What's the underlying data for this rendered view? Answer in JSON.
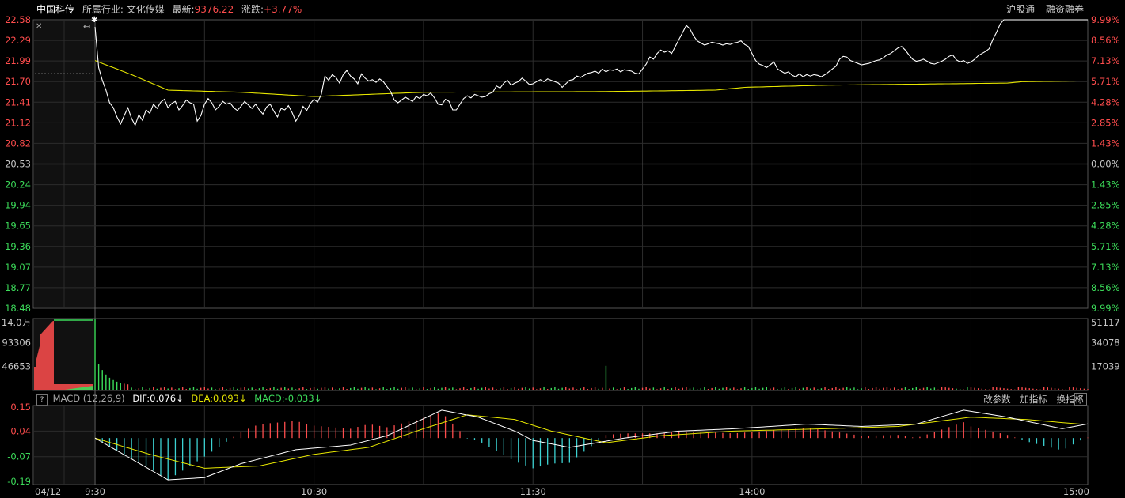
{
  "header": {
    "stock_name": "中国科传",
    "industry": "所属行业: 文化传媒",
    "latest_label": "最新:",
    "latest_value": "9376.22",
    "change_label": "涨跌:",
    "change_value": "+3.77%",
    "btn_hk": "沪股通",
    "btn_margin": "融资融券"
  },
  "macd_bar": {
    "help": "?",
    "name": "MACD (12,26,9)",
    "dif": "DIF:0.076↓",
    "dea": "DEA:0.093↓",
    "macd": "MACD:-0.033↓",
    "btn_params": "改参数",
    "btn_add": "加指标",
    "btn_switch": "换指标",
    "btn_close": "✕"
  },
  "colors": {
    "up": "#ff4d4d",
    "down": "#3cdc5a",
    "price": "#ffffff",
    "avg": "#e6e600",
    "cyan": "#3cd2d2",
    "grid": "#2c2c2c",
    "border": "#555555"
  },
  "chart_data": [
    {
      "type": "line",
      "name": "price",
      "x_ticks": [
        "04/12",
        "9:30",
        "10:30",
        "11:30",
        "14:00",
        "15:00"
      ],
      "y_left_ticks": [
        "22.58",
        "22.29",
        "21.99",
        "21.70",
        "21.41",
        "21.12",
        "20.82",
        "20.53",
        "20.24",
        "19.94",
        "19.65",
        "19.36",
        "19.07",
        "18.77",
        "18.48"
      ],
      "y_right_ticks": [
        "9.99%",
        "8.56%",
        "7.13%",
        "5.71%",
        "4.28%",
        "2.85%",
        "1.43%",
        "0.00%",
        "1.43%",
        "2.85%",
        "4.28%",
        "5.71%",
        "7.13%",
        "8.56%",
        "9.99%"
      ],
      "ylim": [
        18.48,
        22.58
      ],
      "prev_minutes": 10,
      "prev_close_line": 21.82,
      "price": [
        22.48,
        21.9,
        21.72,
        21.58,
        21.4,
        21.33,
        21.2,
        21.1,
        21.22,
        21.33,
        21.18,
        21.08,
        21.23,
        21.15,
        21.3,
        21.25,
        21.38,
        21.32,
        21.41,
        21.45,
        21.33,
        21.39,
        21.42,
        21.3,
        21.36,
        21.44,
        21.4,
        21.38,
        21.14,
        21.22,
        21.38,
        21.46,
        21.4,
        21.3,
        21.35,
        21.42,
        21.38,
        21.4,
        21.33,
        21.29,
        21.35,
        21.42,
        21.37,
        21.32,
        21.38,
        21.3,
        21.24,
        21.34,
        21.38,
        21.28,
        21.2,
        21.32,
        21.3,
        21.36,
        21.26,
        21.14,
        21.22,
        21.35,
        21.29,
        21.39,
        21.45,
        21.41,
        21.52,
        21.78,
        21.72,
        21.8,
        21.76,
        21.68,
        21.8,
        21.86,
        21.78,
        21.74,
        21.67,
        21.81,
        21.75,
        21.71,
        21.73,
        21.69,
        21.74,
        21.7,
        21.63,
        21.56,
        21.44,
        21.4,
        21.44,
        21.48,
        21.45,
        21.42,
        21.49,
        21.46,
        21.52,
        21.5,
        21.54,
        21.47,
        21.38,
        21.37,
        21.45,
        21.42,
        21.3,
        21.3,
        21.38,
        21.46,
        21.5,
        21.47,
        21.52,
        21.5,
        21.48,
        21.49,
        21.53,
        21.55,
        21.64,
        21.61,
        21.68,
        21.72,
        21.65,
        21.68,
        21.7,
        21.75,
        21.71,
        21.66,
        21.67,
        21.7,
        21.73,
        21.7,
        21.74,
        21.72,
        21.7,
        21.68,
        21.62,
        21.67,
        21.72,
        21.73,
        21.78,
        21.76,
        21.79,
        21.82,
        21.83,
        21.85,
        21.82,
        21.88,
        21.84,
        21.87,
        21.86,
        21.88,
        21.84,
        21.87,
        21.86,
        21.85,
        21.82,
        21.81,
        21.88,
        21.95,
        22.05,
        22.02,
        22.1,
        22.15,
        22.12,
        22.14,
        22.1,
        22.2,
        22.3,
        22.4,
        22.5,
        22.45,
        22.35,
        22.28,
        22.25,
        22.22,
        22.24,
        22.26,
        22.25,
        22.24,
        22.22,
        22.24,
        22.23,
        22.25,
        22.26,
        22.28,
        22.23,
        22.2,
        22.1,
        22.0,
        21.95,
        21.93,
        21.9,
        21.94,
        21.98,
        21.88,
        21.85,
        21.82,
        21.84,
        21.79,
        21.77,
        21.81,
        21.77,
        21.8,
        21.78,
        21.8,
        21.79,
        21.77,
        21.8,
        21.84,
        21.88,
        21.92,
        22.02,
        22.06,
        22.05,
        22.0,
        21.98,
        21.96,
        21.94,
        21.95,
        21.96,
        21.98,
        22.0,
        22.01,
        22.04,
        22.08,
        22.1,
        22.14,
        22.18,
        22.2,
        22.15,
        22.08,
        22.02,
        21.99,
        22.0,
        22.02,
        21.99,
        21.96,
        21.95,
        21.97,
        21.99,
        22.02,
        22.06,
        22.08,
        22.01,
        21.98,
        22.0,
        21.96,
        21.98,
        22.02,
        22.07,
        22.1,
        22.13,
        22.17,
        22.3,
        22.4,
        22.52,
        22.58,
        22.58,
        22.58,
        22.58,
        22.58,
        22.58,
        22.58,
        22.58,
        22.58,
        22.58,
        22.58,
        22.58,
        22.58,
        22.58,
        22.58,
        22.58,
        22.58,
        22.58,
        22.58,
        22.58,
        22.58,
        22.58,
        22.58,
        22.58
      ],
      "avg_anchors": [
        [
          0,
          22.0
        ],
        [
          10,
          21.8
        ],
        [
          20,
          21.58
        ],
        [
          40,
          21.55
        ],
        [
          60,
          21.49
        ],
        [
          90,
          21.55
        ],
        [
          140,
          21.56
        ],
        [
          170,
          21.58
        ],
        [
          178,
          21.62
        ],
        [
          200,
          21.65
        ],
        [
          250,
          21.68
        ],
        [
          254,
          21.7
        ],
        [
          270,
          21.71
        ]
      ]
    },
    {
      "type": "bar",
      "name": "volume",
      "y_left_ticks": [
        "14.0万",
        "93306",
        "46653"
      ],
      "y_right_ticks": [
        "51117",
        "34078",
        "17039"
      ],
      "ylim": [
        0,
        140000
      ],
      "spike_minute": 140
    },
    {
      "type": "line",
      "name": "MACD",
      "y_left_ticks": [
        "0.15",
        "0.04",
        "-0.07",
        "-0.19"
      ],
      "ylim": [
        -0.19,
        0.15
      ],
      "dif_anchors": [
        [
          0,
          0.01
        ],
        [
          10,
          -0.08
        ],
        [
          20,
          -0.17
        ],
        [
          30,
          -0.16
        ],
        [
          40,
          -0.1
        ],
        [
          55,
          -0.04
        ],
        [
          70,
          -0.02
        ],
        [
          80,
          0.02
        ],
        [
          95,
          0.13
        ],
        [
          105,
          0.1
        ],
        [
          115,
          0.04
        ],
        [
          120,
          0.0
        ],
        [
          130,
          -0.03
        ],
        [
          145,
          0.01
        ],
        [
          160,
          0.04
        ],
        [
          175,
          0.05
        ],
        [
          195,
          0.07
        ],
        [
          210,
          0.06
        ],
        [
          225,
          0.07
        ],
        [
          238,
          0.13
        ],
        [
          250,
          0.1
        ],
        [
          265,
          0.05
        ],
        [
          275,
          0.08
        ],
        [
          282,
          0.1
        ],
        [
          292,
          0.04
        ],
        [
          305,
          -0.04
        ],
        [
          315,
          -0.07
        ],
        [
          330,
          -0.06
        ],
        [
          345,
          0.01
        ],
        [
          355,
          0.04
        ],
        [
          370,
          0.04
        ],
        [
          385,
          0.0
        ],
        [
          395,
          -0.02
        ],
        [
          405,
          0.02
        ],
        [
          415,
          0.01
        ],
        [
          425,
          0.03
        ],
        [
          435,
          0.1
        ],
        [
          440,
          0.12
        ],
        [
          450,
          0.12
        ],
        [
          460,
          0.1
        ]
      ],
      "dea_anchors": [
        [
          0,
          0.01
        ],
        [
          15,
          -0.06
        ],
        [
          30,
          -0.12
        ],
        [
          45,
          -0.11
        ],
        [
          60,
          -0.06
        ],
        [
          75,
          -0.03
        ],
        [
          90,
          0.05
        ],
        [
          102,
          0.11
        ],
        [
          115,
          0.09
        ],
        [
          125,
          0.04
        ],
        [
          140,
          -0.01
        ],
        [
          155,
          0.02
        ],
        [
          175,
          0.04
        ],
        [
          200,
          0.05
        ],
        [
          220,
          0.06
        ],
        [
          240,
          0.1
        ],
        [
          255,
          0.09
        ],
        [
          270,
          0.07
        ],
        [
          285,
          0.07
        ],
        [
          300,
          0.01
        ],
        [
          315,
          -0.04
        ],
        [
          330,
          -0.06
        ],
        [
          345,
          -0.03
        ],
        [
          360,
          0.02
        ],
        [
          375,
          0.02
        ],
        [
          390,
          0.0
        ],
        [
          405,
          0.01
        ],
        [
          420,
          0.02
        ],
        [
          435,
          0.06
        ],
        [
          450,
          0.1
        ],
        [
          460,
          0.1
        ]
      ]
    }
  ]
}
